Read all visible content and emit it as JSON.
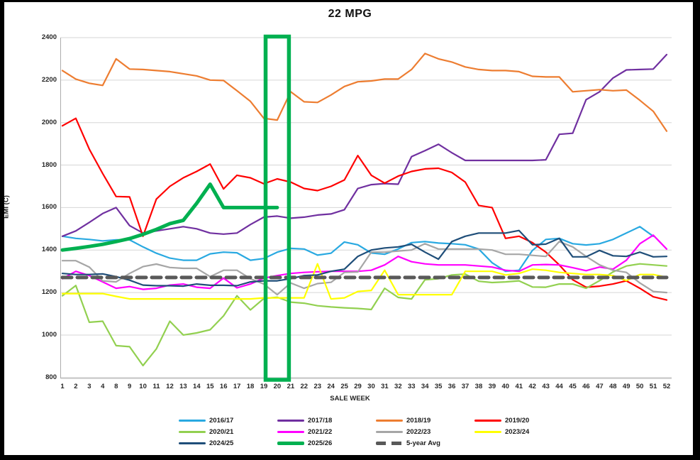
{
  "title": "22 MPG",
  "chart_data": {
    "type": "line",
    "title": "22 MPG",
    "xlabel": "SALE WEEK",
    "ylabel": "EMI (C)",
    "ylim": [
      800,
      2400
    ],
    "y_ticks": [
      800,
      1000,
      1200,
      1400,
      1600,
      1800,
      2000,
      2200,
      2400
    ],
    "grid": true,
    "legend_position": "bottom",
    "categories": [
      "1",
      "2",
      "3",
      "4",
      "8",
      "9",
      "10",
      "11",
      "12",
      "13",
      "14",
      "15",
      "16",
      "17",
      "18",
      "19",
      "20",
      "21",
      "22",
      "23",
      "24",
      "25",
      "29",
      "30",
      "31",
      "32",
      "33",
      "34",
      "35",
      "36",
      "37",
      "38",
      "39",
      "40",
      "41",
      "42",
      "43",
      "44",
      "45",
      "46",
      "47",
      "48",
      "49",
      "50",
      "51",
      "52"
    ],
    "highlight_box": {
      "start_category": "19",
      "end_category": "20",
      "color": "#00B050"
    },
    "draw_order": [
      0,
      1,
      2,
      3,
      4,
      5,
      6,
      7,
      8,
      10,
      9
    ],
    "series": [
      {
        "name": "2016/17",
        "color": "#29A9E1",
        "width": 2.2,
        "values": [
          1465,
          1455,
          1450,
          1443,
          1448,
          1448,
          1415,
          1385,
          1362,
          1352,
          1352,
          1382,
          1390,
          1387,
          1352,
          1360,
          1390,
          1408,
          1405,
          1376,
          1385,
          1438,
          1425,
          1386,
          1380,
          1405,
          1435,
          1440,
          1433,
          1430,
          1425,
          1405,
          1340,
          1300,
          1305,
          1398,
          1450,
          1455,
          1430,
          1424,
          1430,
          1450,
          1480,
          1510,
          1465,
          null
        ]
      },
      {
        "name": "2017/18",
        "color": "#7030A0",
        "width": 2.2,
        "values": [
          1465,
          1490,
          1530,
          1572,
          1600,
          1515,
          1480,
          1490,
          1500,
          1510,
          1500,
          1480,
          1475,
          1480,
          1520,
          1555,
          1560,
          1550,
          1555,
          1565,
          1570,
          1590,
          1690,
          1708,
          1713,
          1710,
          1840,
          1868,
          1898,
          1858,
          1822,
          1822,
          1822,
          1822,
          1822,
          1822,
          1825,
          1945,
          1950,
          2108,
          2145,
          2210,
          2248,
          2250,
          2252,
          2320
        ]
      },
      {
        "name": "2018/19",
        "color": "#ED7D31",
        "width": 2.2,
        "values": [
          2245,
          2205,
          2185,
          2175,
          2300,
          2252,
          2250,
          2245,
          2240,
          2230,
          2220,
          2200,
          2198,
          2150,
          2100,
          2020,
          2012,
          2145,
          2098,
          2095,
          2130,
          2170,
          2192,
          2196,
          2205,
          2205,
          2250,
          2325,
          2300,
          2285,
          2262,
          2250,
          2245,
          2245,
          2240,
          2218,
          2215,
          2215,
          2145,
          2150,
          2155,
          2150,
          2153,
          2105,
          2053,
          1960
        ]
      },
      {
        "name": "2019/20",
        "color": "#FF0000",
        "width": 2.2,
        "values": [
          1985,
          2020,
          1875,
          1760,
          1652,
          1650,
          1465,
          1640,
          1700,
          1740,
          1770,
          1805,
          1688,
          1752,
          1740,
          1712,
          1735,
          1720,
          1690,
          1680,
          1700,
          1730,
          1845,
          1752,
          1715,
          1748,
          1770,
          1782,
          1785,
          1765,
          1720,
          1610,
          1600,
          1455,
          1465,
          1435,
          1390,
          1330,
          1260,
          1225,
          1230,
          1240,
          1255,
          1220,
          1180,
          1165
        ]
      },
      {
        "name": "2020/21",
        "color": "#92D050",
        "width": 2.2,
        "values": [
          1185,
          1233,
          1060,
          1065,
          950,
          945,
          856,
          935,
          1065,
          1000,
          1010,
          1025,
          1090,
          1185,
          1118,
          1172,
          1178,
          1155,
          1150,
          1138,
          1132,
          1128,
          1125,
          1120,
          1220,
          1177,
          1170,
          1260,
          1265,
          1283,
          1287,
          1253,
          1247,
          1250,
          1255,
          1226,
          1225,
          1240,
          1240,
          1220,
          1256,
          1297,
          1325,
          1335,
          1330,
          1325
        ]
      },
      {
        "name": "2021/22",
        "color": "#FF00FF",
        "width": 2.2,
        "values": [
          1265,
          1300,
          1280,
          1250,
          1220,
          1228,
          1215,
          1220,
          1235,
          1240,
          1225,
          1220,
          1268,
          1222,
          1240,
          1268,
          1280,
          1290,
          1295,
          1298,
          1300,
          1300,
          1300,
          1305,
          1330,
          1370,
          1345,
          1335,
          1330,
          1330,
          1330,
          1325,
          1320,
          1305,
          1300,
          1330,
          1332,
          1330,
          1317,
          1303,
          1320,
          1310,
          1352,
          1430,
          1470,
          1405
        ]
      },
      {
        "name": "2022/23",
        "color": "#A6A6A6",
        "width": 2.2,
        "values": [
          1350,
          1350,
          1320,
          1255,
          1250,
          1290,
          1322,
          1334,
          1318,
          1314,
          1314,
          1275,
          1305,
          1305,
          1265,
          1240,
          1190,
          1245,
          1220,
          1242,
          1248,
          1295,
          1297,
          1390,
          1390,
          1395,
          1400,
          1430,
          1405,
          1405,
          1405,
          1405,
          1400,
          1380,
          1380,
          1375,
          1370,
          1440,
          1415,
          1370,
          1330,
          1305,
          1295,
          1245,
          1205,
          1200
        ]
      },
      {
        "name": "2023/24",
        "color": "#FFFF00",
        "width": 2.2,
        "values": [
          1195,
          1195,
          1195,
          1195,
          1182,
          1170,
          1170,
          1170,
          1170,
          1170,
          1170,
          1170,
          1170,
          1170,
          1170,
          1175,
          1175,
          1175,
          1175,
          1335,
          1170,
          1175,
          1205,
          1210,
          1305,
          1190,
          1190,
          1190,
          1190,
          1190,
          1300,
          1300,
          1300,
          1283,
          1290,
          1310,
          1305,
          1295,
          1290,
          1285,
          1285,
          1280,
          1256,
          1285,
          1285,
          1272
        ]
      },
      {
        "name": "2024/25",
        "color": "#1F4E79",
        "width": 2.2,
        "values": [
          1290,
          1285,
          1285,
          1288,
          1275,
          1258,
          1235,
          1232,
          1232,
          1230,
          1240,
          1234,
          1234,
          1232,
          1250,
          1255,
          1255,
          1265,
          1280,
          1283,
          1300,
          1310,
          1370,
          1400,
          1410,
          1415,
          1427,
          1390,
          1357,
          1440,
          1465,
          1480,
          1480,
          1480,
          1492,
          1425,
          1428,
          1455,
          1368,
          1368,
          1398,
          1373,
          1370,
          1390,
          1368,
          1370
        ]
      },
      {
        "name": "2025/26",
        "color": "#00B050",
        "width": 5,
        "values": [
          1400,
          1408,
          1417,
          1427,
          1440,
          1454,
          1474,
          1497,
          1524,
          1540,
          1620,
          1710,
          1600,
          1600,
          1600,
          1600,
          1600,
          null,
          null,
          null,
          null,
          null,
          null,
          null,
          null,
          null,
          null,
          null,
          null,
          null,
          null,
          null,
          null,
          null,
          null,
          null,
          null,
          null,
          null,
          null,
          null,
          null,
          null,
          null,
          null,
          null
        ]
      },
      {
        "name": "5-year Avg",
        "color": "#595959",
        "width": 5,
        "dash": "13 8",
        "values": [
          1271,
          1271,
          1271,
          1271,
          1271,
          1271,
          1271,
          1271,
          1271,
          1271,
          1271,
          1271,
          1271,
          1271,
          1271,
          1271,
          1271,
          1271,
          1271,
          1271,
          1271,
          1271,
          1271,
          1271,
          1271,
          1271,
          1271,
          1271,
          1271,
          1271,
          1271,
          1271,
          1271,
          1271,
          1271,
          1271,
          1271,
          1271,
          1271,
          1271,
          1271,
          1271,
          1271,
          1271,
          1271,
          1271
        ]
      }
    ]
  }
}
